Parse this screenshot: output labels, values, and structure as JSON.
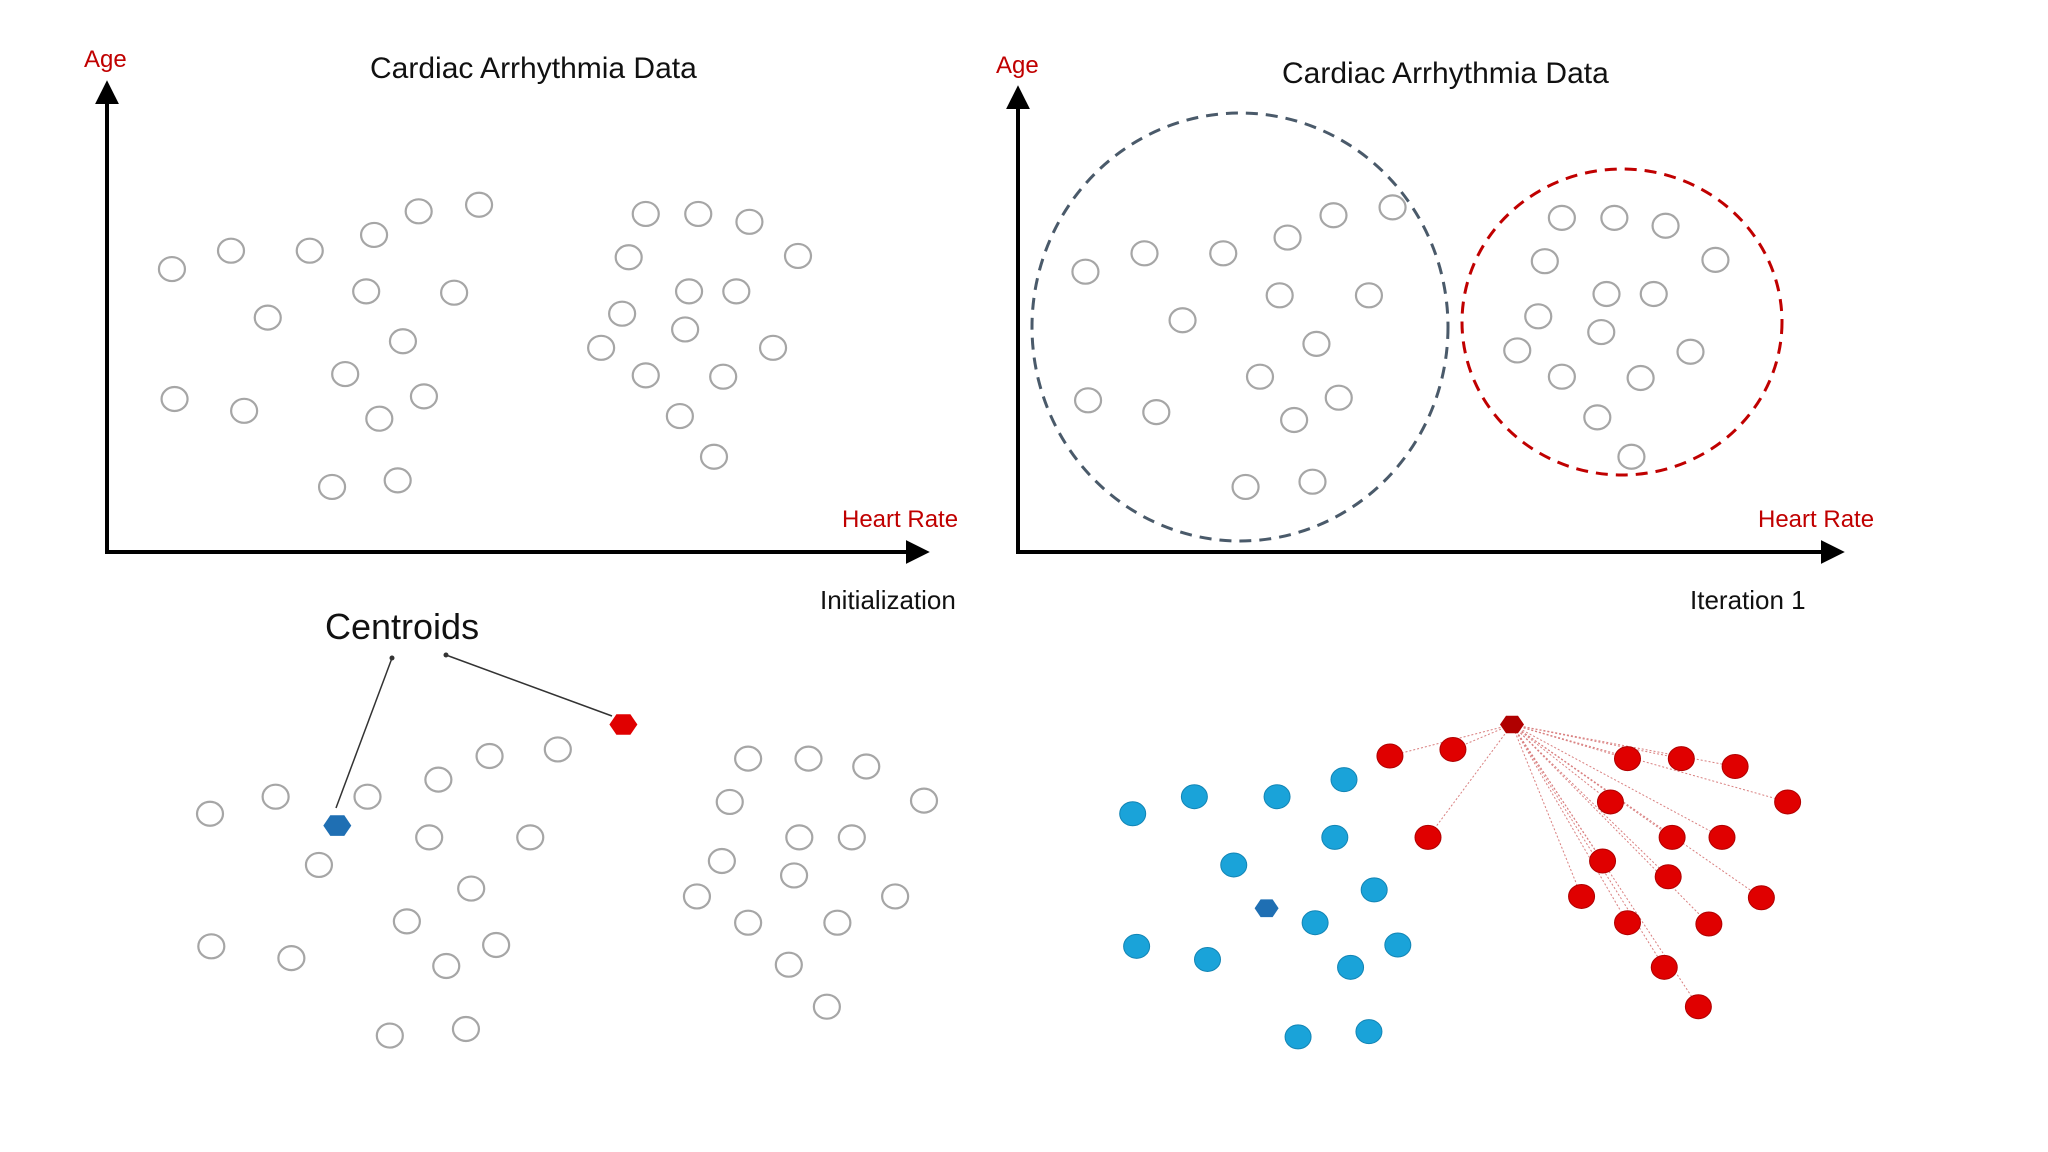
{
  "panels": {
    "top_left": {
      "title": "Cardiac Arrhythmia Data",
      "ylabel": "Age",
      "xlabel": "Heart Rate",
      "caption": "Initialization"
    },
    "top_right": {
      "title": "Cardiac Arrhythmia Data",
      "ylabel": "Age",
      "xlabel": "Heart Rate",
      "caption": "Iteration 1"
    },
    "bottom_left": {
      "label": "Centroids"
    }
  },
  "colors": {
    "point_outline": "#a6a6a6",
    "axis": "#000000",
    "axis_label": "#c00000",
    "cluster_blue": "#1aa3d9",
    "cluster_red": "#e00000",
    "centroid_blue": "#1f6fb3",
    "centroid_red": "#e00000",
    "circle_blue": "#4a5a6a",
    "circle_red": "#c00000"
  }
}
